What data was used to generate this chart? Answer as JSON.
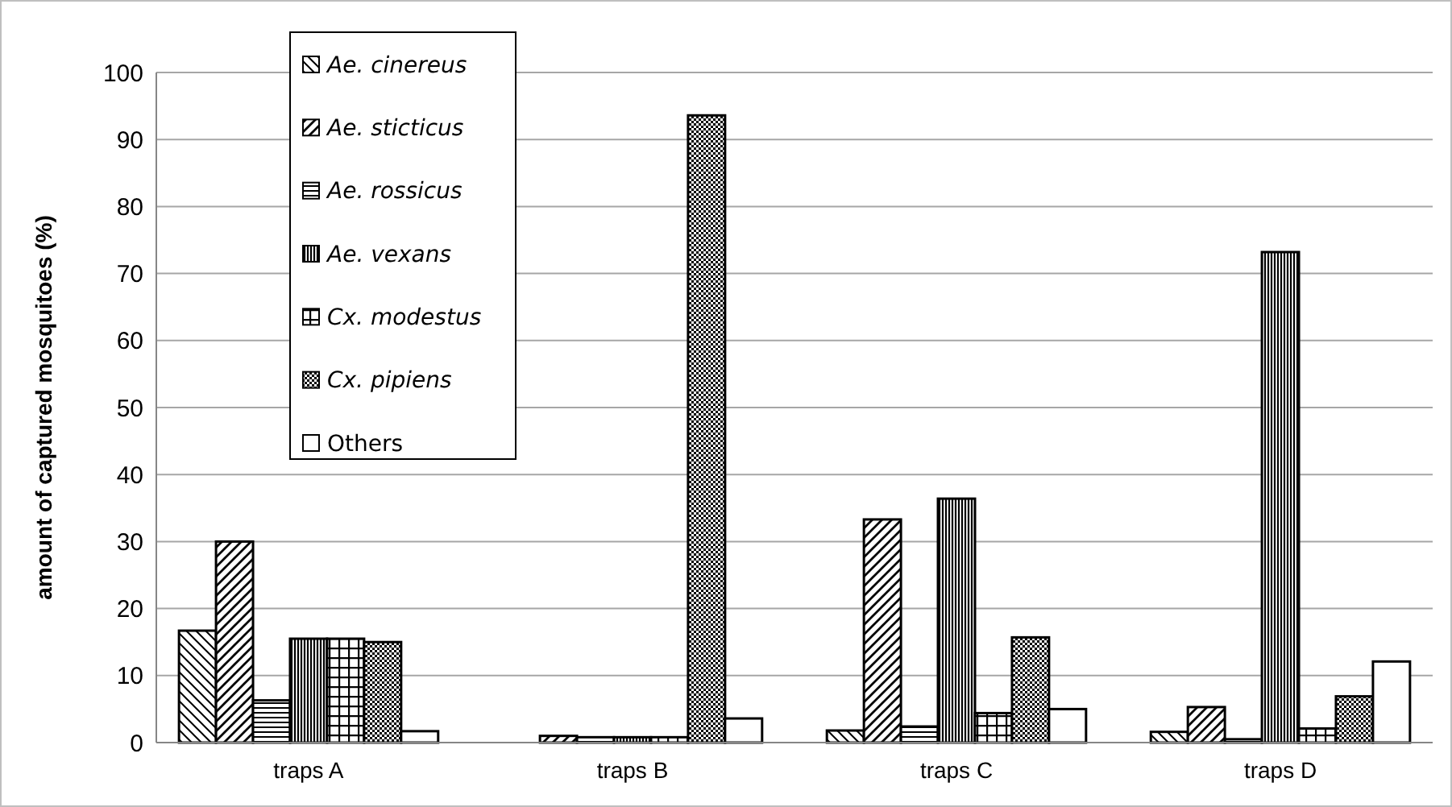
{
  "chart_data": {
    "type": "bar",
    "ylabel": "amount of captured mosquitoes (%)",
    "categories": [
      "traps A",
      "traps B",
      "traps C",
      "traps D"
    ],
    "series": [
      {
        "name": "Ae. cinereus",
        "color": "#000000",
        "values": [
          16.7,
          0,
          1.8,
          1.6
        ]
      },
      {
        "name": "Ae. sticticus",
        "color": "#000000",
        "values": [
          30,
          1,
          33.3,
          5.3
        ]
      },
      {
        "name": "Ae. rossicus",
        "color": "#000000",
        "values": [
          6.3,
          0.8,
          2.4,
          0.5
        ]
      },
      {
        "name": "Ae. vexans",
        "color": "#000000",
        "values": [
          15.5,
          0.8,
          36.4,
          73.2
        ]
      },
      {
        "name": "Cx. modestus",
        "color": "#000000",
        "values": [
          15.5,
          0.8,
          4.4,
          2.1
        ]
      },
      {
        "name": "Cx. pipiens",
        "color": "#000000",
        "values": [
          15,
          93.6,
          15.7,
          6.9
        ]
      },
      {
        "name": "Others",
        "color": "#ffffff",
        "values": [
          1.7,
          3.6,
          5,
          12.1
        ]
      }
    ],
    "ylim": [
      0,
      100
    ],
    "yticks": [
      0,
      10,
      20,
      30,
      40,
      50,
      60,
      70,
      80,
      90,
      100
    ],
    "grid": "y",
    "legend": "top left"
  }
}
